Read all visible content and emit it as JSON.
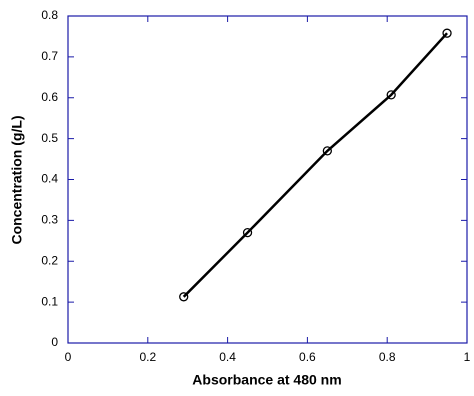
{
  "chart_data": {
    "type": "line",
    "x_label": "Absorbance at 480 nm",
    "y_label": "Concentration (g/L)",
    "x": [
      0.29,
      0.45,
      0.65,
      0.81,
      0.95
    ],
    "series": [
      {
        "name": "Concentration",
        "color": "#000000",
        "values": [
          0.113,
          0.27,
          0.47,
          0.607,
          0.758
        ]
      }
    ],
    "xlim": [
      0,
      1
    ],
    "xticks": [
      0,
      0.2,
      0.4,
      0.6,
      0.8,
      1
    ],
    "ylim": [
      0,
      0.8
    ],
    "yticks": [
      0,
      0.1,
      0.2,
      0.3,
      0.4,
      0.5,
      0.6,
      0.7,
      0.8
    ],
    "frame_color": "#1a1aa8",
    "markers": true
  }
}
